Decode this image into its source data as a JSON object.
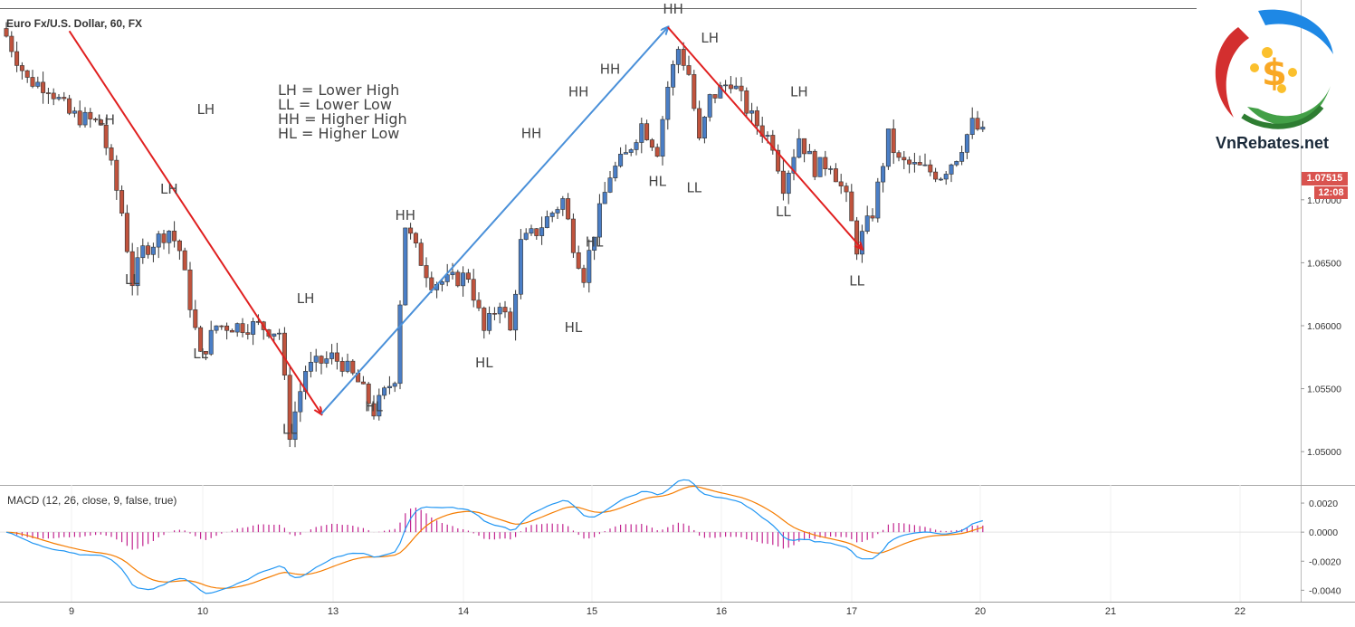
{
  "chart_data": {
    "type": "candlestick",
    "title": "Euro Fx/U.S. Dollar, 60, FX",
    "symbol": "EURUSD",
    "timeframe": "60",
    "x_tick_labels": [
      "9",
      "10",
      "13",
      "14",
      "15",
      "16",
      "17",
      "20",
      "21",
      "22"
    ],
    "y_axis": {
      "range": [
        1.0475,
        1.085
      ],
      "tick_labels": [
        "1.05000",
        "1.05500",
        "1.06000",
        "1.06500",
        "1.07000"
      ]
    },
    "last_price": "1.07515",
    "countdown": "12:08",
    "legend_lines": [
      "LH = Lower High",
      "LL = Lower Low",
      "HH = Higher High",
      "HL = Higher Low"
    ],
    "swing_labels": [
      {
        "text": "LH",
        "bar": 19,
        "price": 1.076
      },
      {
        "text": "LL",
        "bar": 24,
        "price": 1.0633
      },
      {
        "text": "LH",
        "bar": 31,
        "price": 1.0705
      },
      {
        "text": "LH",
        "bar": 38,
        "price": 1.0768
      },
      {
        "text": "LL",
        "bar": 37,
        "price": 1.0574
      },
      {
        "text": "LH",
        "bar": 57,
        "price": 1.0618
      },
      {
        "text": "LL",
        "bar": 54,
        "price": 1.0514
      },
      {
        "text": "HH",
        "bar": 76,
        "price": 1.0684
      },
      {
        "text": "HL",
        "bar": 70,
        "price": 1.0532
      },
      {
        "text": "HH",
        "bar": 100,
        "price": 1.0749
      },
      {
        "text": "HL",
        "bar": 91,
        "price": 1.0567
      },
      {
        "text": "HH",
        "bar": 109,
        "price": 1.0782
      },
      {
        "text": "HH",
        "bar": 115,
        "price": 1.08
      },
      {
        "text": "HL",
        "bar": 108,
        "price": 1.0595
      },
      {
        "text": "HL",
        "bar": 112,
        "price": 1.0663
      },
      {
        "text": "HH",
        "bar": 127,
        "price": 1.0848
      },
      {
        "text": "LH",
        "bar": 134,
        "price": 1.0825
      },
      {
        "text": "HL",
        "bar": 124,
        "price": 1.0711
      },
      {
        "text": "LL",
        "bar": 131,
        "price": 1.0706
      },
      {
        "text": "LH",
        "bar": 151,
        "price": 1.0782
      },
      {
        "text": "LL",
        "bar": 148,
        "price": 1.0687
      },
      {
        "text": "LL",
        "bar": 162,
        "price": 1.0632
      }
    ],
    "trend_arrows": [
      {
        "from_bar": 12,
        "from_price": 1.0834,
        "to_bar": 60,
        "to_price": 1.053,
        "color": "#e02020"
      },
      {
        "from_bar": 60,
        "from_price": 1.053,
        "to_bar": 126,
        "to_price": 1.0837,
        "color": "#4a90d9"
      },
      {
        "from_bar": 126,
        "from_price": 1.0837,
        "to_bar": 163,
        "to_price": 1.0661,
        "color": "#e02020"
      }
    ],
    "macd": {
      "label": "MACD (12, 26, close, 9, false, true)",
      "y_range": [
        -0.0046,
        0.003
      ],
      "tick_labels": [
        "0.0020",
        "0.0000",
        "-0.0020",
        "-0.0040"
      ],
      "macd_color": "#2196f3",
      "signal_color": "#f57c00",
      "histogram_color": "#c2248f"
    },
    "colors": {
      "up": "#4a7ec6",
      "down": "#c0533d",
      "grid": "#e6e6e6"
    }
  },
  "watermark": {
    "brand": "VnRebates.net",
    "symbol": "$"
  }
}
